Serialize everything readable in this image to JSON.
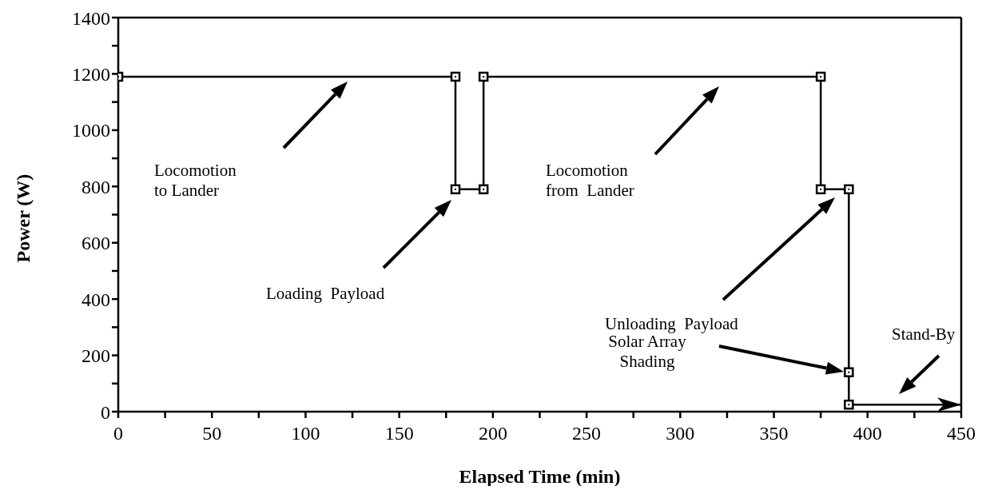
{
  "chart_data": {
    "type": "line",
    "xlabel": "Elapsed Time (min)",
    "ylabel": "Power (W)",
    "x": [
      0,
      180,
      180,
      195,
      195,
      375,
      375,
      390,
      390,
      390,
      450
    ],
    "series": [
      {
        "color": "#000000",
        "values": [
          1190,
          1190,
          790,
          790,
          1190,
          1190,
          790,
          790,
          140,
          25,
          25
        ]
      }
    ],
    "xlim": [
      0,
      450
    ],
    "xticks": [
      0,
      {
        "value": 25,
        "label": null
      },
      50,
      {
        "value": 75,
        "label": null
      },
      100,
      {
        "value": 125,
        "label": null
      },
      150,
      {
        "value": 175,
        "label": null
      },
      200,
      {
        "value": 225,
        "label": null
      },
      250,
      {
        "value": 275,
        "label": null
      },
      300,
      {
        "value": 325,
        "label": null
      },
      350,
      {
        "value": 375,
        "label": null
      },
      400,
      {
        "value": 425,
        "label": null
      },
      450
    ],
    "ylim": [
      0,
      1400
    ],
    "yticks": [
      0,
      {
        "value": 100,
        "label": null
      },
      200,
      {
        "value": 300,
        "label": null
      },
      400,
      {
        "value": 500,
        "label": null
      },
      600,
      {
        "value": 700,
        "label": null
      },
      800,
      {
        "value": 900,
        "label": null
      },
      1000,
      {
        "value": 1100,
        "label": null
      },
      1200,
      {
        "value": 1300,
        "label": null
      },
      1400
    ],
    "marker": "square",
    "line_style": "solid",
    "grid": false,
    "legend": false,
    "annotations": [
      "Locomotion\nto Lander",
      "Loading  Payload",
      "Locomotion\nfrom  Lander",
      "Unloading  Payload",
      "Solar Array\nShading",
      "Stand-By"
    ]
  }
}
